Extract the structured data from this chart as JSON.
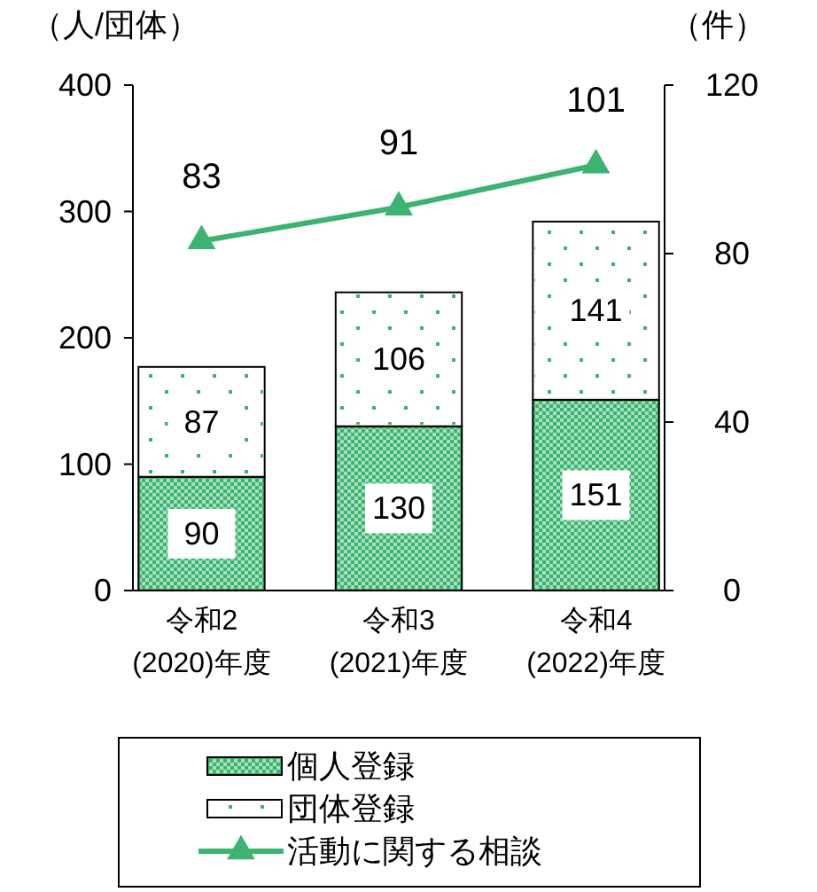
{
  "chart_data": {
    "type": "bar",
    "stacked": true,
    "categories": [
      "令和2\n(2020)年度",
      "令和3\n(2021)年度",
      "令和4\n(2022)年度"
    ],
    "ylabel": "（人/団体）",
    "y2label": "（件）",
    "ylim": [
      0,
      400
    ],
    "yticks": [
      0,
      100,
      200,
      300,
      400
    ],
    "y2lim": [
      0,
      120
    ],
    "y2ticks": [
      0,
      40,
      80,
      120
    ],
    "series": [
      {
        "name": "個人登録",
        "color": "#3cb371",
        "values": [
          90,
          130,
          151
        ]
      },
      {
        "name": "団体登録",
        "color": "#ffffff",
        "values": [
          87,
          106,
          141
        ]
      },
      {
        "name": "活動に関する相談",
        "type": "line",
        "axis": "y2",
        "color": "#3cb371",
        "values": [
          83,
          91,
          101
        ]
      }
    ],
    "data_labels": true,
    "marker": "triangle",
    "legend": "bottom",
    "grid": false
  }
}
